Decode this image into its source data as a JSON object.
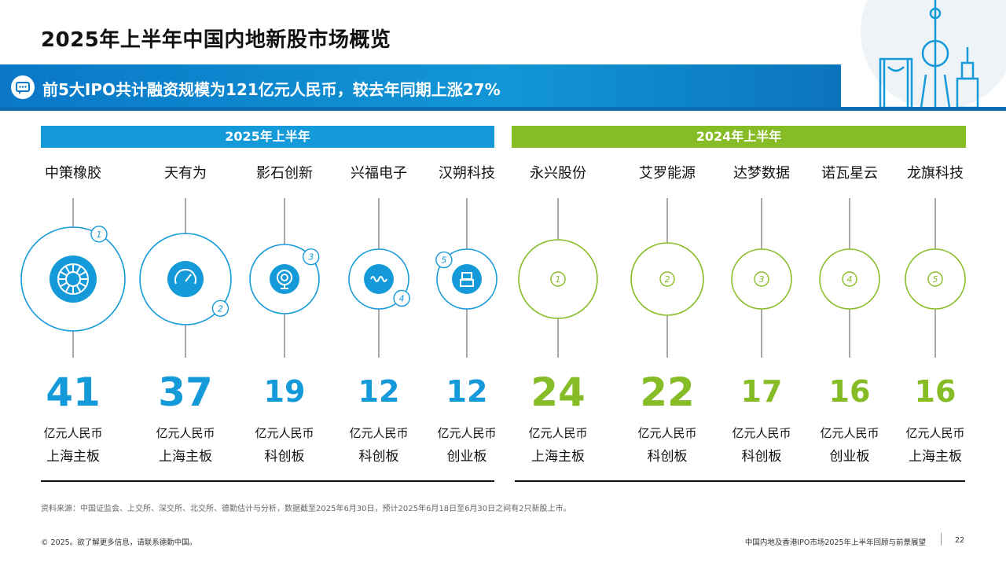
{
  "title": "2025年上半年中国内地新股市场概览",
  "banner": "前5大IPO共计融资规模为121亿元人民币，较去年同期上涨27%",
  "groups": {
    "h1_2025": "2025年上半年",
    "h1_2024": "2024年上半年"
  },
  "colors": {
    "blue": "#149ad9",
    "green": "#86bc25",
    "banner": "#0a78c7"
  },
  "unit": "亿元人民币",
  "items_2025": [
    {
      "rank": "1",
      "company": "中策橡胶",
      "value": "41",
      "board": "上海主板",
      "icon": "tire-icon"
    },
    {
      "rank": "2",
      "company": "天有为",
      "value": "37",
      "board": "上海主板",
      "icon": "gauge-icon"
    },
    {
      "rank": "3",
      "company": "影石创新",
      "value": "19",
      "board": "科创板",
      "icon": "camera-icon"
    },
    {
      "rank": "4",
      "company": "兴福电子",
      "value": "12",
      "board": "科创板",
      "icon": "chip-wave-icon"
    },
    {
      "rank": "5",
      "company": "汉朔科技",
      "value": "12",
      "board": "创业板",
      "icon": "tech-icon"
    }
  ],
  "items_2024": [
    {
      "rank": "1",
      "company": "永兴股份",
      "value": "24",
      "board": "上海主板"
    },
    {
      "rank": "2",
      "company": "艾罗能源",
      "value": "22",
      "board": "科创板"
    },
    {
      "rank": "3",
      "company": "达梦数据",
      "value": "17",
      "board": "科创板"
    },
    {
      "rank": "4",
      "company": "诺瓦星云",
      "value": "16",
      "board": "创业板"
    },
    {
      "rank": "5",
      "company": "龙旗科技",
      "value": "16",
      "board": "上海主板"
    }
  ],
  "source": "资料来源：中国证监会、上交所、深交所、北交所、德勤估计与分析，数据截至2025年6月30日，预计2025年6月18日至6月30日之间有2只新股上市。",
  "footer": {
    "left": "© 2025。欲了解更多信息，请联系德勤中国。",
    "right": "中国内地及香港IPO市场2025年上半年回顾与前景展望",
    "page": "22"
  }
}
